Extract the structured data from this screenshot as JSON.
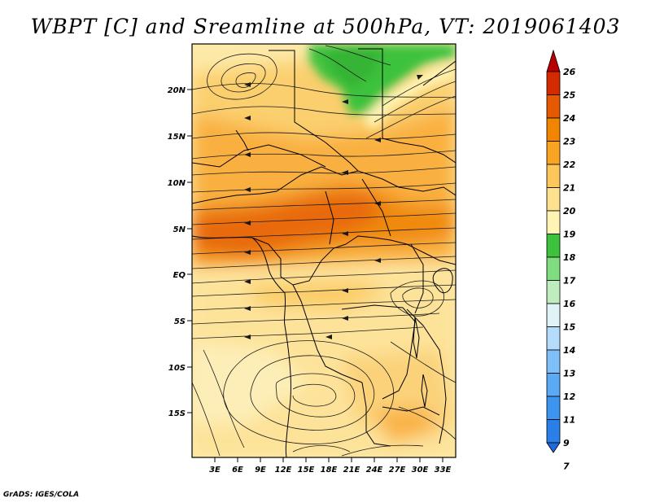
{
  "title": "WBPT [C] and Sreamline at 500hPa, VT: 2019061403",
  "credit": "GrADS: IGES/COLA",
  "map": {
    "lat_labels": [
      "20N",
      "15N",
      "10N",
      "5N",
      "EQ",
      "5S",
      "10S",
      "15S"
    ],
    "lon_labels": [
      "3E",
      "6E",
      "9E",
      "12E",
      "15E",
      "18E",
      "21E",
      "24E",
      "27E",
      "30E",
      "33E"
    ],
    "variable": "Wet-bulb potential temperature",
    "level": "500hPa"
  },
  "colorbar": {
    "labels": [
      "7",
      "9",
      "11",
      "12",
      "13",
      "14",
      "15",
      "16",
      "17",
      "18",
      "19",
      "20",
      "21",
      "22",
      "23",
      "24",
      "25",
      "26"
    ],
    "colors": [
      "#1e6ad8",
      "#2a80e8",
      "#3c96f0",
      "#5aaaf5",
      "#7fc0f8",
      "#b4dcfa",
      "#e0f4f8",
      "#bfedbf",
      "#7fdc7f",
      "#3cc23c",
      "#fff4b4",
      "#fde18e",
      "#fbc65a",
      "#f9a422",
      "#f28500",
      "#e55a00",
      "#d42a00",
      "#b80000"
    ],
    "top_arrow_color": "#b80000",
    "bottom_arrow_color": "#1e6ad8"
  }
}
